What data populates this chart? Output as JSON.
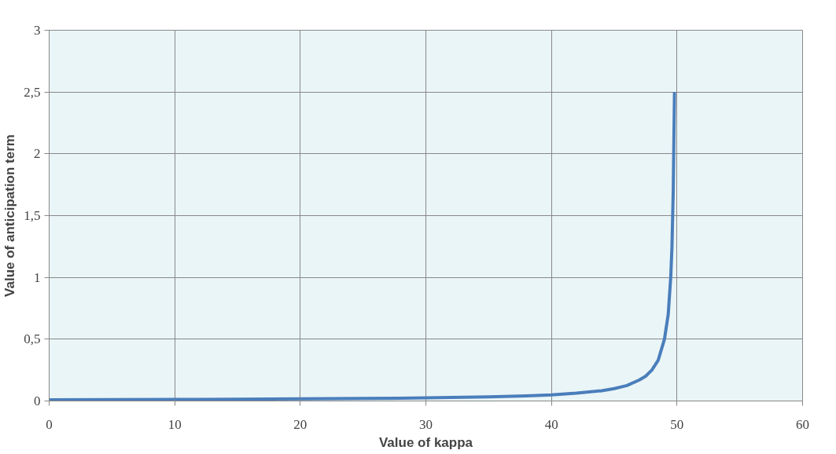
{
  "chart_data": {
    "type": "line",
    "xlabel": "Value of kappa",
    "ylabel": "Value of anticipation term",
    "x": [
      0,
      5,
      10,
      15,
      20,
      25,
      30,
      35,
      38,
      40,
      42,
      44,
      45,
      46,
      47,
      47.5,
      48,
      48.5,
      49,
      49.3,
      49.5,
      49.6,
      49.7,
      49.8
    ],
    "series": [
      {
        "color": "#4a7ebb",
        "values": [
          0.01,
          0.011,
          0.012,
          0.014,
          0.017,
          0.02,
          0.025,
          0.033,
          0.042,
          0.05,
          0.063,
          0.083,
          0.1,
          0.125,
          0.17,
          0.2,
          0.25,
          0.33,
          0.5,
          0.7,
          1.0,
          1.25,
          1.7,
          2.5
        ]
      }
    ],
    "xlim": [
      0,
      60
    ],
    "xticks": [
      0,
      10,
      20,
      30,
      40,
      50,
      60
    ],
    "ylim": [
      0,
      3
    ],
    "yticks": [
      0,
      {
        "value": 0.5,
        "label": "0,5"
      },
      1,
      {
        "value": 1.5,
        "label": "1,5"
      },
      2,
      {
        "value": 2.5,
        "label": "2,5"
      },
      3
    ],
    "grid": true,
    "marker": "none",
    "line_style": "solid"
  }
}
